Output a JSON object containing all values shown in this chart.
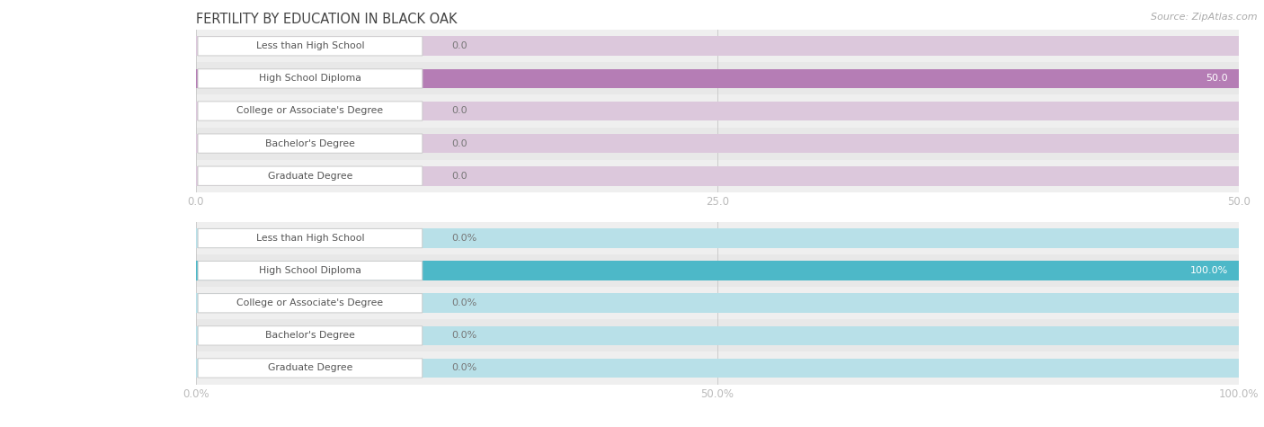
{
  "title": "FERTILITY BY EDUCATION IN BLACK OAK",
  "source": "Source: ZipAtlas.com",
  "categories": [
    "Less than High School",
    "High School Diploma",
    "College or Associate's Degree",
    "Bachelor's Degree",
    "Graduate Degree"
  ],
  "chart1": {
    "values": [
      0.0,
      50.0,
      0.0,
      0.0,
      0.0
    ],
    "xlim": [
      0,
      50.0
    ],
    "xticks": [
      0.0,
      25.0,
      50.0
    ],
    "tick_labels": [
      "0.0",
      "25.0",
      "50.0"
    ],
    "bar_color": "#b57db5",
    "bar_bg_color": "#dcc8dc",
    "value_suffix": "",
    "value_color_inside": "#ffffff",
    "value_color_outside": "#888888"
  },
  "chart2": {
    "values": [
      0.0,
      100.0,
      0.0,
      0.0,
      0.0
    ],
    "xlim": [
      0,
      100.0
    ],
    "xticks": [
      0.0,
      50.0,
      100.0
    ],
    "tick_labels": [
      "0.0%",
      "50.0%",
      "100.0%"
    ],
    "bar_color": "#4db8c8",
    "bar_bg_color": "#b8e0e8",
    "value_suffix": "%",
    "value_color_inside": "#ffffff",
    "value_color_outside": "#888888"
  },
  "row_colors": [
    "#efefef",
    "#e8e8e8"
  ],
  "label_box_facecolor": "#ffffff",
  "label_box_edgecolor": "#d8d8d8",
  "label_text_color": "#555555",
  "title_color": "#444444",
  "source_color": "#aaaaaa",
  "bar_height": 0.6,
  "label_fontsize": 7.8,
  "tick_fontsize": 8.5,
  "title_fontsize": 10.5,
  "value_fontsize": 8.0,
  "source_fontsize": 8.0
}
